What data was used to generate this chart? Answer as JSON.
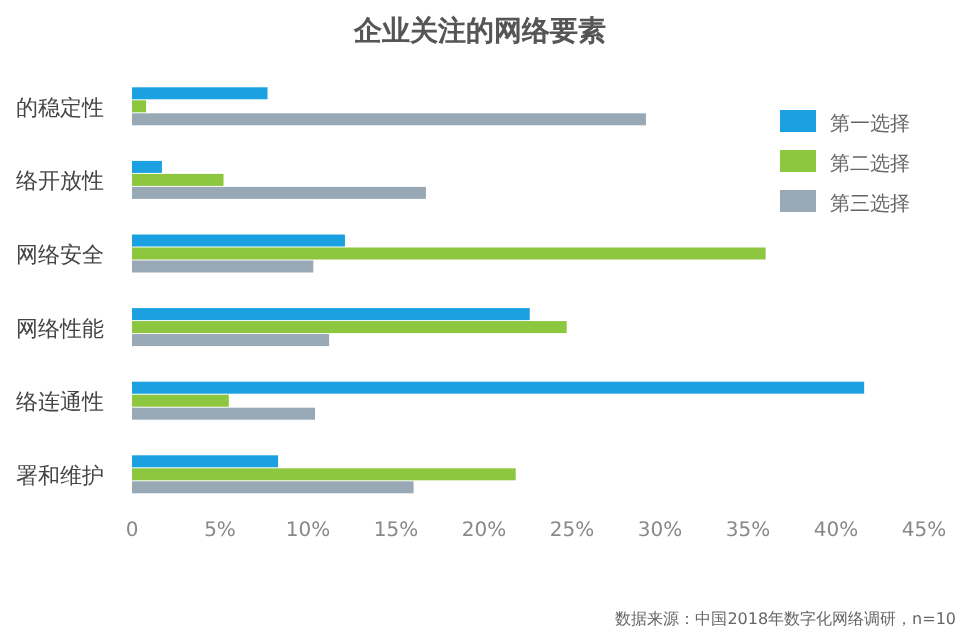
{
  "chart_data": {
    "type": "bar",
    "orientation": "horizontal",
    "title": "企业关注的网络要素",
    "categories": [
      "的稳定性",
      "络开放性",
      "网络安全",
      "网络性能",
      "络连通性",
      "署和维护"
    ],
    "series": [
      {
        "name": "第一选择",
        "color": "#1ba1e2",
        "values": [
          7.7,
          1.7,
          12.1,
          22.6,
          41.6,
          8.3
        ]
      },
      {
        "name": "第二选择",
        "color": "#8dc63f",
        "values": [
          0.8,
          5.2,
          36.0,
          24.7,
          5.5,
          21.8
        ]
      },
      {
        "name": "第三选择",
        "color": "#99a8b5",
        "values": [
          29.2,
          16.7,
          10.3,
          11.2,
          10.4,
          16.0
        ]
      }
    ],
    "xlim": [
      0,
      45
    ],
    "xticks": [
      0,
      {
        "value": 5,
        "label": "5%"
      },
      {
        "value": 10,
        "label": "10%"
      },
      {
        "value": 15,
        "label": "15%"
      },
      {
        "value": 20,
        "label": "20%"
      },
      {
        "value": 25,
        "label": "25%"
      },
      {
        "value": 30,
        "label": "30%"
      },
      {
        "value": 35,
        "label": "35%"
      },
      {
        "value": 40,
        "label": "40%"
      },
      {
        "value": 45,
        "label": "45%"
      }
    ],
    "legend": "right",
    "grid": false,
    "annotations": [
      "数据来源：中国2018年数字化网络调研，n=10"
    ]
  }
}
